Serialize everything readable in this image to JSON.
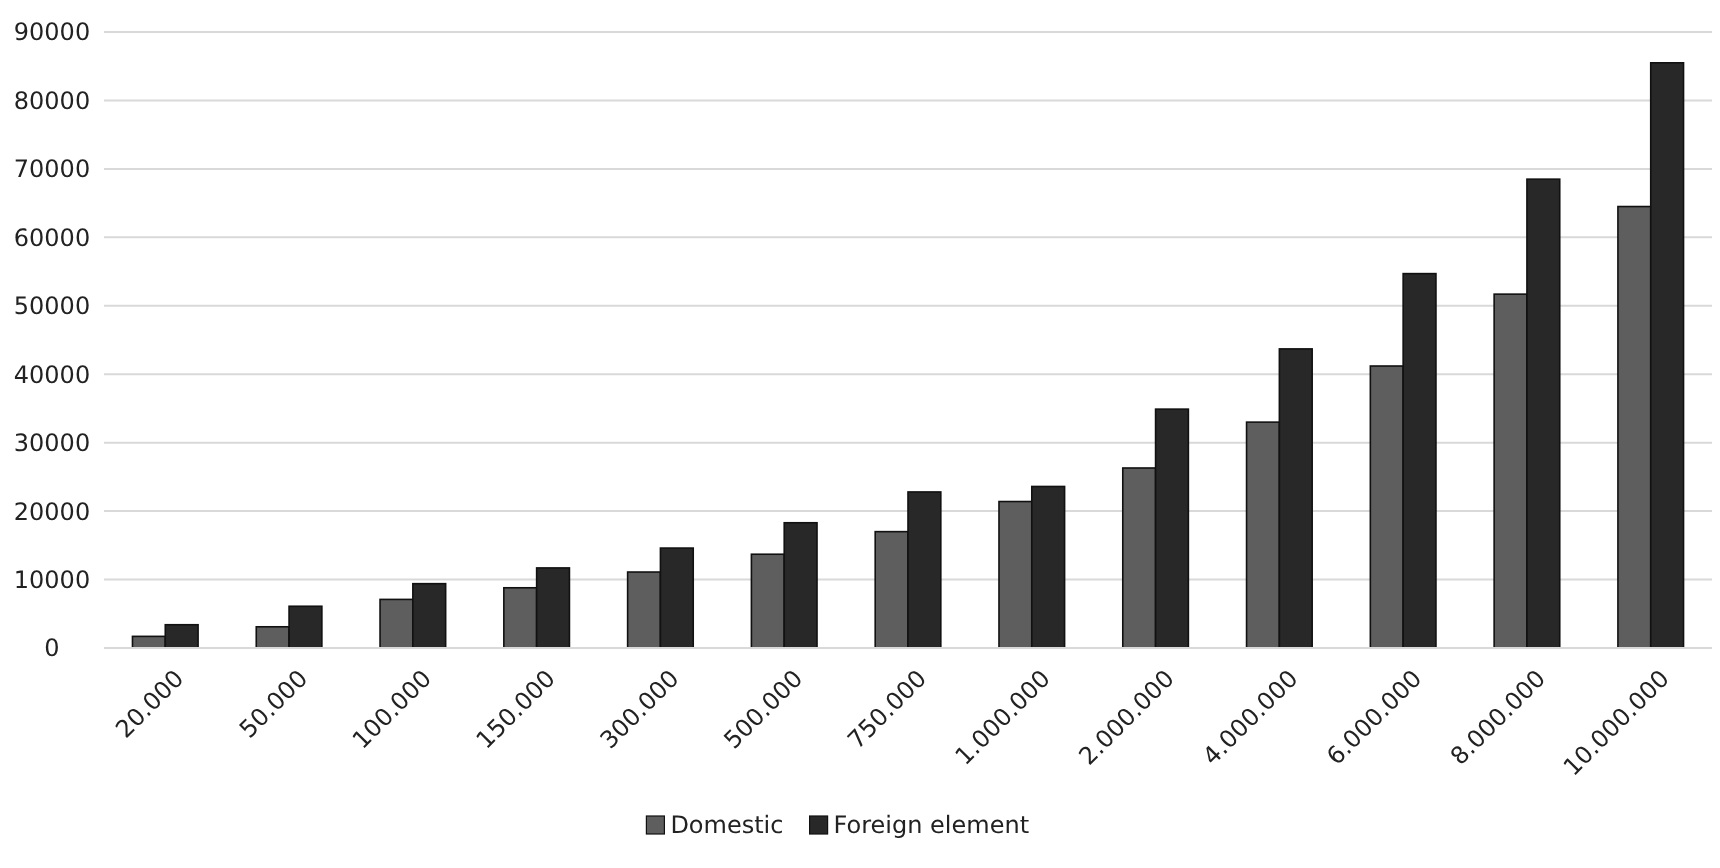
{
  "chart_data": {
    "type": "bar",
    "categories": [
      "20.000",
      "50.000",
      "100.000",
      "150.000",
      "300.000",
      "500.000",
      "750.000",
      "1.000.000",
      "2.000.000",
      "4.000.000",
      "6.000.000",
      "8.000.000",
      "10.000.000"
    ],
    "series": [
      {
        "name": "Domestic",
        "color": "#5e5e5e",
        "values": [
          1700,
          3100,
          7100,
          8800,
          11100,
          13700,
          17000,
          21400,
          26300,
          33000,
          41200,
          51700,
          64500
        ]
      },
      {
        "name": "Foreign element",
        "color": "#282828",
        "values": [
          3400,
          6100,
          9400,
          11700,
          14600,
          18300,
          22800,
          23600,
          34900,
          43700,
          54700,
          68500,
          85500
        ]
      }
    ],
    "ylim": [
      0,
      90000
    ],
    "yticks": [
      0,
      10000,
      20000,
      30000,
      40000,
      50000,
      60000,
      70000,
      80000,
      90000
    ],
    "grid": "y",
    "legend": "bottom"
  }
}
